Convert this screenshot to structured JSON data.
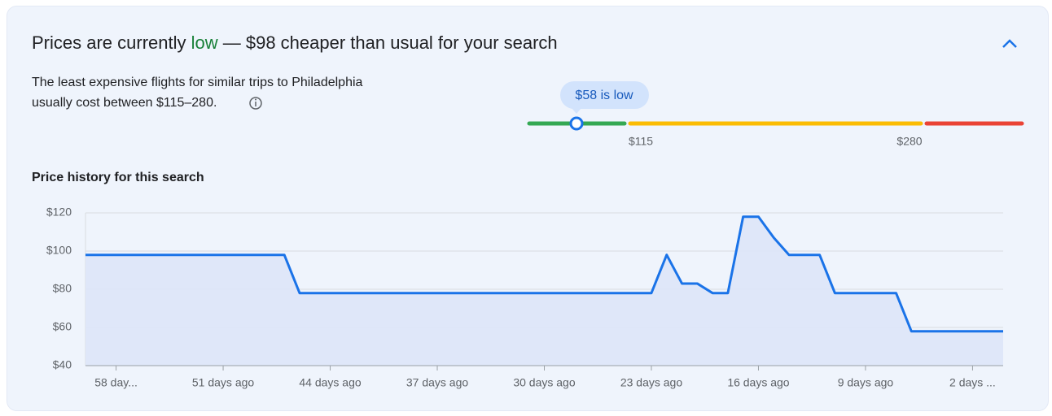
{
  "header": {
    "title_parts": [
      "Prices are currently ",
      "low",
      " — $98 cheaper than usual for your search"
    ],
    "description": [
      "The least expensive flights for similar trips to Philadelphia",
      "usually cost between $115–280."
    ]
  },
  "range": {
    "current_label": "$58 is low",
    "low_label": "$115",
    "high_label": "$280"
  },
  "chart_data": {
    "type": "area",
    "title": "Price history for this search",
    "x": [
      60,
      59,
      58,
      57,
      56,
      55,
      54,
      53,
      52,
      51,
      50,
      49,
      48,
      47,
      46,
      45,
      44,
      43,
      42,
      41,
      40,
      39,
      38,
      37,
      36,
      35,
      34,
      33,
      32,
      31,
      30,
      29,
      28,
      27,
      26,
      25,
      24,
      23,
      22,
      21,
      20,
      19,
      18,
      17,
      16,
      15,
      14,
      13,
      12,
      11,
      10,
      9,
      8,
      7,
      6,
      5,
      4,
      3,
      2,
      1,
      0
    ],
    "series": [
      {
        "color": "#1a73e8",
        "values": [
          98,
          98,
          98,
          98,
          98,
          98,
          98,
          98,
          98,
          98,
          98,
          98,
          98,
          98,
          78,
          78,
          78,
          78,
          78,
          78,
          78,
          78,
          78,
          78,
          78,
          78,
          78,
          78,
          78,
          78,
          78,
          78,
          78,
          78,
          78,
          78,
          78,
          78,
          98,
          83,
          83,
          78,
          78,
          118,
          118,
          107,
          98,
          98,
          98,
          78,
          78,
          78,
          78,
          78,
          58,
          58,
          58,
          58,
          58,
          58,
          58
        ]
      }
    ],
    "xlim": [
      60,
      0
    ],
    "xticks": [
      {
        "value": 58,
        "label": "58 day..."
      },
      {
        "value": 51,
        "label": "51 days ago"
      },
      {
        "value": 44,
        "label": "44 days ago"
      },
      {
        "value": 37,
        "label": "37 days ago"
      },
      {
        "value": 30,
        "label": "30 days ago"
      },
      {
        "value": 23,
        "label": "23 days ago"
      },
      {
        "value": 16,
        "label": "16 days ago"
      },
      {
        "value": 9,
        "label": "9 days ago"
      },
      {
        "value": 2,
        "label": "2 days ..."
      }
    ],
    "ylim": [
      40,
      120
    ],
    "yticks": [
      {
        "value": 40,
        "label": "$40"
      },
      {
        "value": 60,
        "label": "$60"
      },
      {
        "value": 80,
        "label": "$80"
      },
      {
        "value": 100,
        "label": "$100"
      },
      {
        "value": 120,
        "label": "$120"
      }
    ],
    "grid": true
  }
}
